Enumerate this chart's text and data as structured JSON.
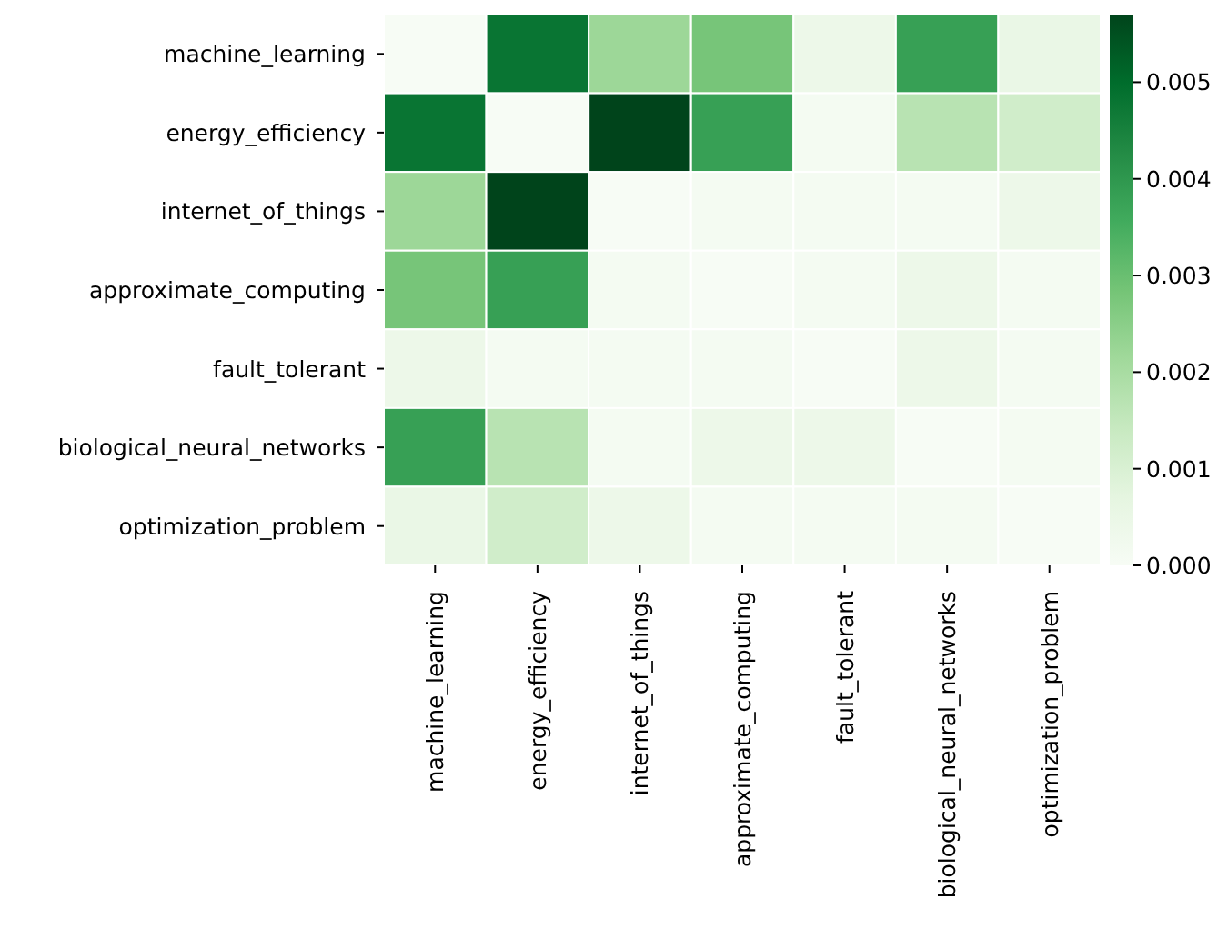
{
  "chart_data": {
    "type": "heatmap",
    "categories": [
      "machine_learning",
      "energy_efficiency",
      "internet_of_things",
      "approximate_computing",
      "fault_tolerant",
      "biological_neural_networks",
      "optimization_problem"
    ],
    "y_categories": [
      "machine_learning",
      "energy_efficiency",
      "internet_of_things",
      "approximate_computing",
      "fault_tolerant",
      "biological_neural_networks",
      "optimization_problem"
    ],
    "cells": [
      [
        0,
        0.0048,
        0.0022,
        0.0028,
        0.0004,
        0.0038,
        0.0005
      ],
      [
        0.0048,
        0,
        0.0057,
        0.0038,
        0.0001,
        0.0017,
        0.0012
      ],
      [
        0.0022,
        0.0057,
        0,
        0.0001,
        0.0001,
        0.0001,
        0.0004
      ],
      [
        0.0028,
        0.0038,
        0.0001,
        0,
        0.0001,
        0.0004,
        0.0001
      ],
      [
        0.0004,
        0.0001,
        0.0001,
        0.0001,
        0,
        0.0004,
        0.0001
      ],
      [
        0.0038,
        0.0017,
        0.0001,
        0.0004,
        0.0004,
        0,
        0.0001
      ],
      [
        0.0005,
        0.0012,
        0.0004,
        0.0001,
        0.0001,
        0.0001,
        0
      ]
    ],
    "clim": [
      0,
      0.0057
    ],
    "cticks": [
      {
        "value": 0,
        "label": "0.000"
      },
      0.001,
      0.002,
      0.003,
      0.004,
      0.005
    ]
  }
}
